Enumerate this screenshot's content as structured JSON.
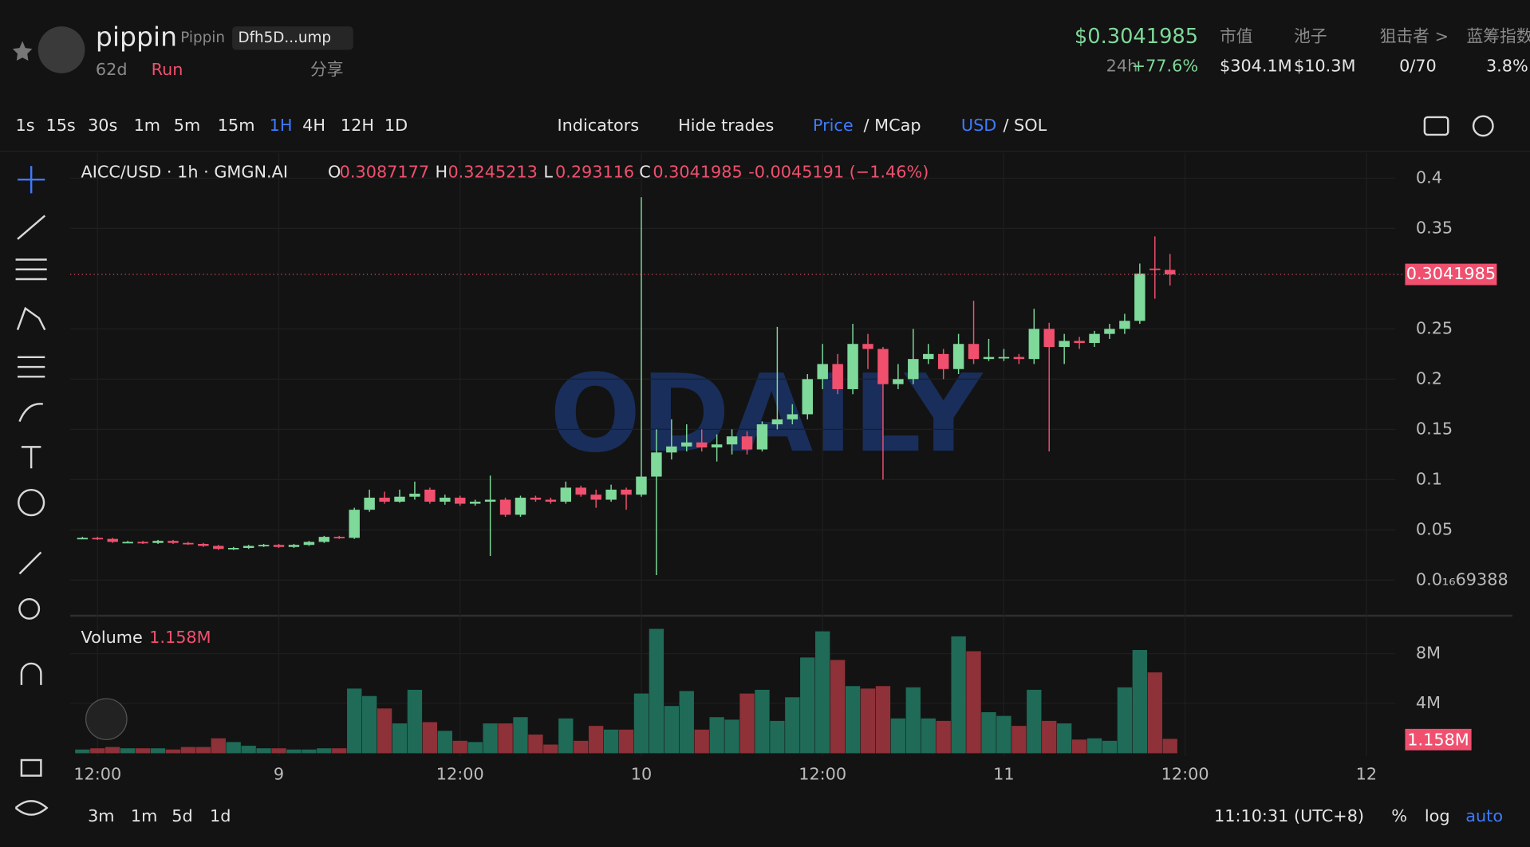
{
  "header": {
    "name": "pippin",
    "ticker": "Pippin",
    "address": "Dfh5D...ump",
    "age": "62d",
    "run": "Run",
    "share": "分享",
    "price": "$0.3041985",
    "change_label": "24h",
    "change": "+77.6%",
    "stats": [
      {
        "label": "市值",
        "value": "$304.1M"
      },
      {
        "label": "池子",
        "value": "$10.3M"
      },
      {
        "label": "狙击者 >",
        "value": "0/70"
      },
      {
        "label": "蓝筹指数",
        "value": "3.8%"
      }
    ]
  },
  "toolbar": {
    "intervals": [
      "1s",
      "15s",
      "30s",
      "1m",
      "5m",
      "15m",
      "1H",
      "4H",
      "12H",
      "1D"
    ],
    "active": "1H",
    "indicators": "Indicators",
    "hide_trades": "Hide trades",
    "price": "Price",
    "mcap": "/ MCap",
    "usd": "USD",
    "sol": "/ SOL"
  },
  "chart": {
    "type": "candlestick",
    "title": "AICC/USD · 1h · GMGN.AI",
    "watermark": "ODAILY",
    "legend": {
      "o_label": "O",
      "o": "0.3087177",
      "h_label": "H",
      "h": "0.3245213",
      "l_label": "L",
      "l": "0.293116",
      "c_label": "C",
      "c": "0.3041985",
      "change": "-0.0045191 (−1.46%)"
    },
    "open": [
      0.042,
      0.042,
      0.041,
      0.038,
      0.038,
      0.037,
      0.039,
      0.037,
      0.036,
      0.034,
      0.031,
      0.032,
      0.034,
      0.035,
      0.033,
      0.035,
      0.038,
      0.043,
      0.042,
      0.07,
      0.082,
      0.078,
      0.083,
      0.09,
      0.078,
      0.082,
      0.076,
      0.078,
      0.08,
      0.065,
      0.082,
      0.08,
      0.078,
      0.092,
      0.085,
      0.08,
      0.09,
      0.085,
      0.103,
      0.127,
      0.133,
      0.137,
      0.132,
      0.135,
      0.143,
      0.13,
      0.155,
      0.16,
      0.165,
      0.2,
      0.215,
      0.19,
      0.235,
      0.23,
      0.195,
      0.2,
      0.22,
      0.225,
      0.21,
      0.235,
      0.22,
      0.222,
      0.222,
      0.22,
      0.25,
      0.232,
      0.238,
      0.236,
      0.245,
      0.25,
      0.258,
      0.31,
      0.3087177
    ],
    "high": [
      0.043,
      0.043,
      0.042,
      0.039,
      0.039,
      0.04,
      0.04,
      0.038,
      0.037,
      0.035,
      0.033,
      0.035,
      0.036,
      0.036,
      0.036,
      0.039,
      0.044,
      0.044,
      0.072,
      0.09,
      0.088,
      0.09,
      0.098,
      0.092,
      0.085,
      0.084,
      0.08,
      0.104,
      0.082,
      0.084,
      0.084,
      0.082,
      0.098,
      0.094,
      0.09,
      0.095,
      0.092,
      0.381,
      0.15,
      0.16,
      0.155,
      0.15,
      0.145,
      0.15,
      0.148,
      0.158,
      0.252,
      0.175,
      0.205,
      0.235,
      0.225,
      0.255,
      0.245,
      0.232,
      0.215,
      0.25,
      0.235,
      0.23,
      0.245,
      0.278,
      0.24,
      0.23,
      0.225,
      0.27,
      0.256,
      0.245,
      0.242,
      0.248,
      0.255,
      0.265,
      0.315,
      0.342,
      0.3245213
    ],
    "low": [
      0.041,
      0.04,
      0.037,
      0.037,
      0.036,
      0.036,
      0.036,
      0.035,
      0.033,
      0.03,
      0.03,
      0.031,
      0.033,
      0.032,
      0.032,
      0.034,
      0.037,
      0.041,
      0.041,
      0.068,
      0.076,
      0.077,
      0.08,
      0.076,
      0.075,
      0.074,
      0.074,
      0.024,
      0.063,
      0.063,
      0.078,
      0.076,
      0.076,
      0.083,
      0.072,
      0.078,
      0.07,
      0.083,
      0.005,
      0.12,
      0.128,
      0.128,
      0.118,
      0.125,
      0.125,
      0.128,
      0.15,
      0.155,
      0.16,
      0.19,
      0.185,
      0.185,
      0.21,
      0.1,
      0.19,
      0.195,
      0.215,
      0.2,
      0.205,
      0.215,
      0.218,
      0.218,
      0.215,
      0.215,
      0.128,
      0.215,
      0.23,
      0.232,
      0.24,
      0.245,
      0.255,
      0.28,
      0.293116
    ],
    "close": [
      0.042,
      0.041,
      0.038,
      0.038,
      0.037,
      0.039,
      0.037,
      0.036,
      0.034,
      0.031,
      0.032,
      0.034,
      0.035,
      0.033,
      0.035,
      0.038,
      0.043,
      0.042,
      0.07,
      0.082,
      0.078,
      0.083,
      0.086,
      0.078,
      0.082,
      0.076,
      0.078,
      0.08,
      0.065,
      0.082,
      0.08,
      0.078,
      0.092,
      0.085,
      0.08,
      0.09,
      0.085,
      0.103,
      0.127,
      0.133,
      0.137,
      0.132,
      0.135,
      0.143,
      0.13,
      0.155,
      0.16,
      0.165,
      0.2,
      0.215,
      0.19,
      0.235,
      0.23,
      0.195,
      0.2,
      0.22,
      0.225,
      0.21,
      0.235,
      0.22,
      0.222,
      0.222,
      0.22,
      0.25,
      0.232,
      0.238,
      0.236,
      0.245,
      0.25,
      0.258,
      0.305,
      0.3087177,
      0.3041985
    ],
    "volume": [
      300000,
      400000,
      500000,
      400000,
      400000,
      400000,
      300000,
      500000,
      500000,
      1200000,
      900000,
      600000,
      400000,
      400000,
      300000,
      300000,
      400000,
      400000,
      5200000,
      4600000,
      3600000,
      2400000,
      5100000,
      2500000,
      1800000,
      1000000,
      900000,
      2400000,
      2400000,
      2900000,
      1500000,
      700000,
      2800000,
      1000000,
      2200000,
      1900000,
      1900000,
      4800000,
      10000000,
      3800000,
      5000000,
      1900000,
      2900000,
      2700000,
      4800000,
      5100000,
      2600000,
      4500000,
      7700000,
      9800000,
      7500000,
      5400000,
      5200000,
      5400000,
      2800000,
      5300000,
      2800000,
      2600000,
      9400000,
      8200000,
      3300000,
      3000000,
      2200000,
      5100000,
      2600000,
      2400000,
      1100000,
      1200000,
      1000000,
      5300000,
      8300000,
      6500000,
      1158000
    ],
    "yticks": [
      0.4,
      0.35,
      0.25,
      0.2,
      0.15,
      0.1,
      0.05,
      {
        "value": 6.9388e-17,
        "label": "0.0₁₆69388"
      }
    ],
    "last_price": 0.3041985,
    "volume_title": "Volume",
    "volume_label": "1.158M",
    "volume_ticks": [
      {
        "value": 8000000,
        "label": "8M"
      },
      {
        "value": 4000000,
        "label": "4M"
      }
    ],
    "xtick_labels": [
      "12:00",
      "9",
      "12:00",
      "10",
      "12:00",
      "11",
      "12:00",
      "12"
    ]
  },
  "footer": {
    "ranges": [
      "3m",
      "1m",
      "5d",
      "1d"
    ],
    "time": "11:10:31 (UTC+8)",
    "percent": "%",
    "log": "log",
    "auto": "auto"
  }
}
